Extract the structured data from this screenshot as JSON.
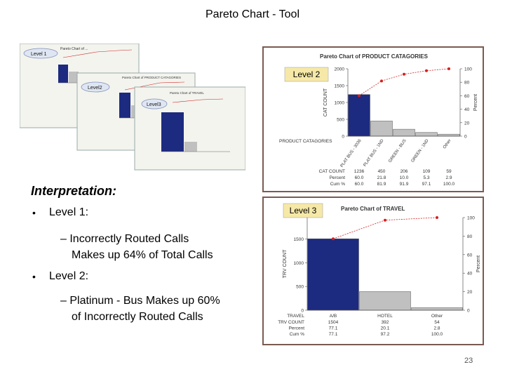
{
  "slide": {
    "title": "Pareto Chart - Tool",
    "page_number": "23",
    "interpretation_heading": "Interpretation:",
    "bullets": [
      {
        "bullet": "•",
        "label": "Level 1:",
        "sub": [
          "– Incorrectly Routed Calls",
          "Makes up 64% of  Total Calls"
        ]
      },
      {
        "bullet": "•",
        "label": "Level 2:",
        "sub": [
          "– Platinum  - Bus Makes up 60%",
          "of  Incorrectly Routed Calls"
        ]
      }
    ]
  },
  "thumbnails": {
    "level1": {
      "tag": "Level 1",
      "title": "Pareto Chart of ..."
    },
    "level2": {
      "tag": "Level2",
      "title": "Pareto Chart of PRODUCT CATAGORIES"
    },
    "level3": {
      "tag": "Level3",
      "title": "Pareto Chart of TRAVEL"
    }
  },
  "colors": {
    "bar_primary": "#1c2a80",
    "bar_gray": "#c0c0c0",
    "line_red": "#d42020",
    "frame": "#7a5a50",
    "bg": "#ffffff"
  },
  "chart_data": [
    {
      "type": "bar",
      "title": "Pareto Chart of PRODUCT CATAGORIES",
      "level_label": "Level 2",
      "xlabel": "PRODUCT CATAGORIES",
      "ylabel": "CAT COUNT",
      "y2label": "Percent",
      "categories": [
        "PLAT BUS - 3036",
        "PLAT BUS - 1ND",
        "GREEN - BUS",
        "GREEN - 1ND",
        "Other"
      ],
      "ylim": [
        0,
        2000
      ],
      "yticks": [
        "0",
        "500",
        "1000",
        "1500",
        "2000"
      ],
      "y2ticks": [
        "0",
        "20",
        "40",
        "60",
        "80",
        "100"
      ],
      "series": [
        {
          "values": [
            1236,
            450,
            206,
            109,
            59
          ]
        },
        {
          "values": [
            60.0,
            81.9,
            91.9,
            97.1,
            100.0
          ]
        }
      ],
      "table": {
        "rows": [
          {
            "label": "CAT COUNT",
            "values": [
              "1236",
              "450",
              "206",
              "109",
              "59"
            ]
          },
          {
            "label": "Percent",
            "values": [
              "60.0",
              "21.8",
              "10.0",
              "5.3",
              "2.9"
            ]
          },
          {
            "label": "Cum %",
            "values": [
              "60.0",
              "81.9",
              "91.9",
              "97.1",
              "100.0"
            ]
          }
        ]
      }
    },
    {
      "type": "bar",
      "title": "Pareto Chart of TRAVEL",
      "level_label": "Level 3",
      "xlabel": "TRAVEL",
      "ylabel": "TRV COUNT",
      "y2label": "Percent",
      "categories": [
        "A/B",
        "HOTEL",
        "Other"
      ],
      "ylim": [
        0,
        1950
      ],
      "yticks": [
        "0",
        "500",
        "1000",
        "1500"
      ],
      "y2ticks": [
        "0",
        "20",
        "40",
        "60",
        "80",
        "100"
      ],
      "series": [
        {
          "values": [
            1504,
            392,
            54
          ]
        },
        {
          "values": [
            77.1,
            97.2,
            100.0
          ]
        }
      ],
      "table": {
        "rows": [
          {
            "label": "TRV COUNT",
            "values": [
              "1504",
              "392",
              "54"
            ]
          },
          {
            "label": "Percent",
            "values": [
              "77.1",
              "20.1",
              "2.8"
            ]
          },
          {
            "label": "Cum %",
            "values": [
              "77.1",
              "97.2",
              "100.0"
            ]
          }
        ]
      }
    }
  ]
}
